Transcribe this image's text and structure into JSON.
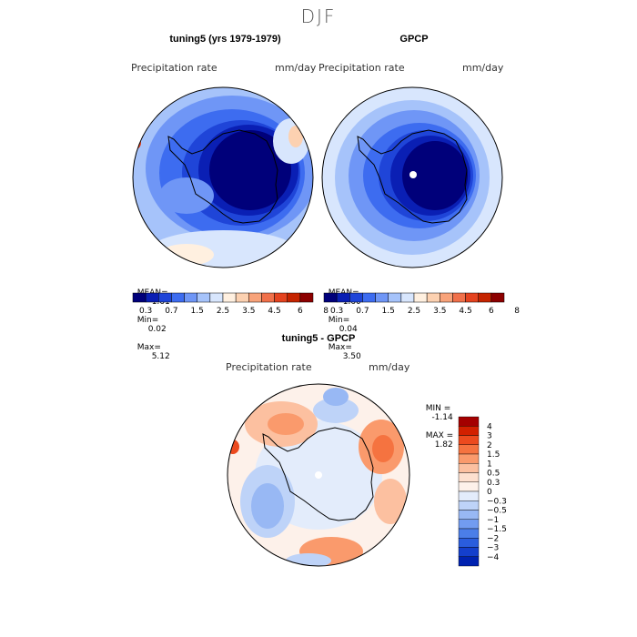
{
  "season_title": "DJF",
  "panels": [
    {
      "id": "model",
      "title": "tuning5 (yrs 1979-1979)",
      "variable": "Precipitation rate",
      "units": "mm/day",
      "mean_label": "MEAN=",
      "mean": "1.61",
      "min_label": "Min=",
      "min": "0.02",
      "max_label": "Max=",
      "max": "5.12"
    },
    {
      "id": "obs",
      "title": "GPCP",
      "variable": "Precipitation rate",
      "units": "mm/day",
      "mean_label": "MEAN=",
      "mean": "1.60",
      "min_label": "Min=",
      "min": "0.04",
      "max_label": "Max=",
      "max": "3.50"
    }
  ],
  "abs_colorbar": {
    "ticks": [
      "0.3",
      "0.7",
      "1.5",
      "2.5",
      "3.5",
      "4.5",
      "6",
      "8"
    ],
    "colors": [
      "#00007a",
      "#0a1fb4",
      "#1f45d8",
      "#3d6cf0",
      "#6f96f6",
      "#a6c3fa",
      "#d8e6fd",
      "#fff0e0",
      "#fcd1b1",
      "#f8a37a",
      "#f0704a",
      "#e4431f",
      "#c52400",
      "#8c0000"
    ]
  },
  "diff_panel": {
    "title": "tuning5 - GPCP",
    "variable": "Precipitation rate",
    "units": "mm/day",
    "min_label": "MIN =",
    "min": "-1.14",
    "max_label": "MAX =",
    "max": "1.82",
    "ticks": [
      "4",
      "3",
      "2",
      "1.5",
      "1",
      "0.5",
      "0.3",
      "0",
      "−0.3",
      "−0.5",
      "−1",
      "−1.5",
      "−2",
      "−3",
      "−4"
    ],
    "colors": [
      "#a40000",
      "#d22000",
      "#ec4a1e",
      "#f57340",
      "#fa9a6c",
      "#fcc0a0",
      "#fde0cf",
      "#fdf1ea",
      "#e3ecfb",
      "#bed3f8",
      "#98b8f4",
      "#729cf0",
      "#4b7ee8",
      "#2a5ddd",
      "#143fcc",
      "#0022b0"
    ]
  }
}
